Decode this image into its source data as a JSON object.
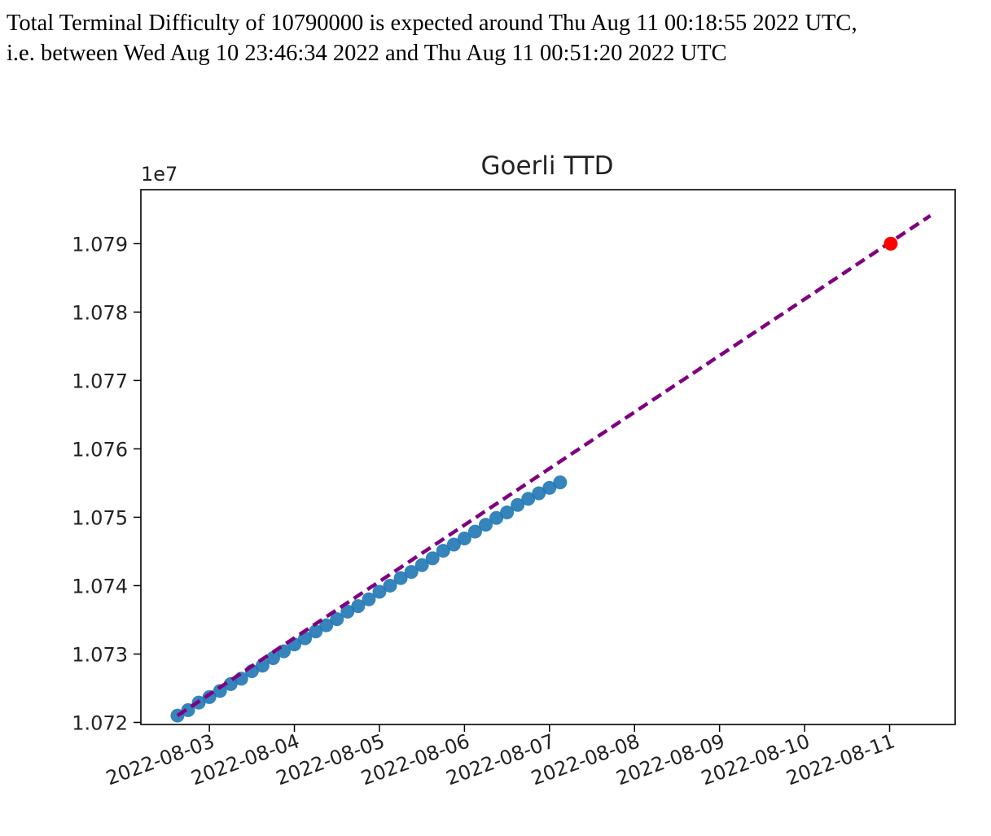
{
  "header": {
    "line1": "Total Terminal Difficulty of 10790000 is expected around Thu Aug 11 00:18:55 2022 UTC,",
    "line2": "i.e. between Wed Aug 10 23:46:34 2022 and Thu Aug 11 00:51:20 2022 UTC"
  },
  "chart_data": {
    "type": "scatter",
    "title": "Goerli TTD",
    "xlabel": "",
    "ylabel": "",
    "y_offset_label": "1e7",
    "xlim": [
      "2022-08-02T04:40",
      "2022-08-11T18:30"
    ],
    "ylim": [
      10719700,
      10797900
    ],
    "x_ticks": [
      "2022-08-03",
      "2022-08-04",
      "2022-08-05",
      "2022-08-06",
      "2022-08-07",
      "2022-08-08",
      "2022-08-09",
      "2022-08-10",
      "2022-08-11"
    ],
    "y_ticks": [
      {
        "value": 10720000,
        "label": "1.072"
      },
      {
        "value": 10730000,
        "label": "1.073"
      },
      {
        "value": 10740000,
        "label": "1.074"
      },
      {
        "value": 10750000,
        "label": "1.075"
      },
      {
        "value": 10760000,
        "label": "1.076"
      },
      {
        "value": 10770000,
        "label": "1.077"
      },
      {
        "value": 10780000,
        "label": "1.078"
      },
      {
        "value": 10790000,
        "label": "1.079"
      }
    ],
    "grid": false,
    "series": [
      {
        "kind": "scatter",
        "color": "#1f77b4",
        "x_start": "2022-08-02T15:00",
        "x_step_hours": 3,
        "y": [
          10721000,
          10721800,
          10722900,
          10723700,
          10724600,
          10725600,
          10726400,
          10727500,
          10728300,
          10729400,
          10730400,
          10731400,
          10732300,
          10733300,
          10734200,
          10735100,
          10736200,
          10737000,
          10738000,
          10739100,
          10740000,
          10741100,
          10742000,
          10743000,
          10744000,
          10745100,
          10746000,
          10746900,
          10747900,
          10748900,
          10749900,
          10750700,
          10751800,
          10752700,
          10753500,
          10754300,
          10755100
        ]
      },
      {
        "kind": "line",
        "style": "dashed",
        "color": "#800080",
        "points": [
          {
            "x": "2022-08-02T15:00",
            "y": 10721000
          },
          {
            "x": "2022-08-11T11:30",
            "y": 10794100
          }
        ]
      },
      {
        "kind": "scatter",
        "color": "#ff0000",
        "points": [
          {
            "x": "2022-08-11T00:18:55",
            "y": 10790000
          }
        ]
      }
    ]
  }
}
